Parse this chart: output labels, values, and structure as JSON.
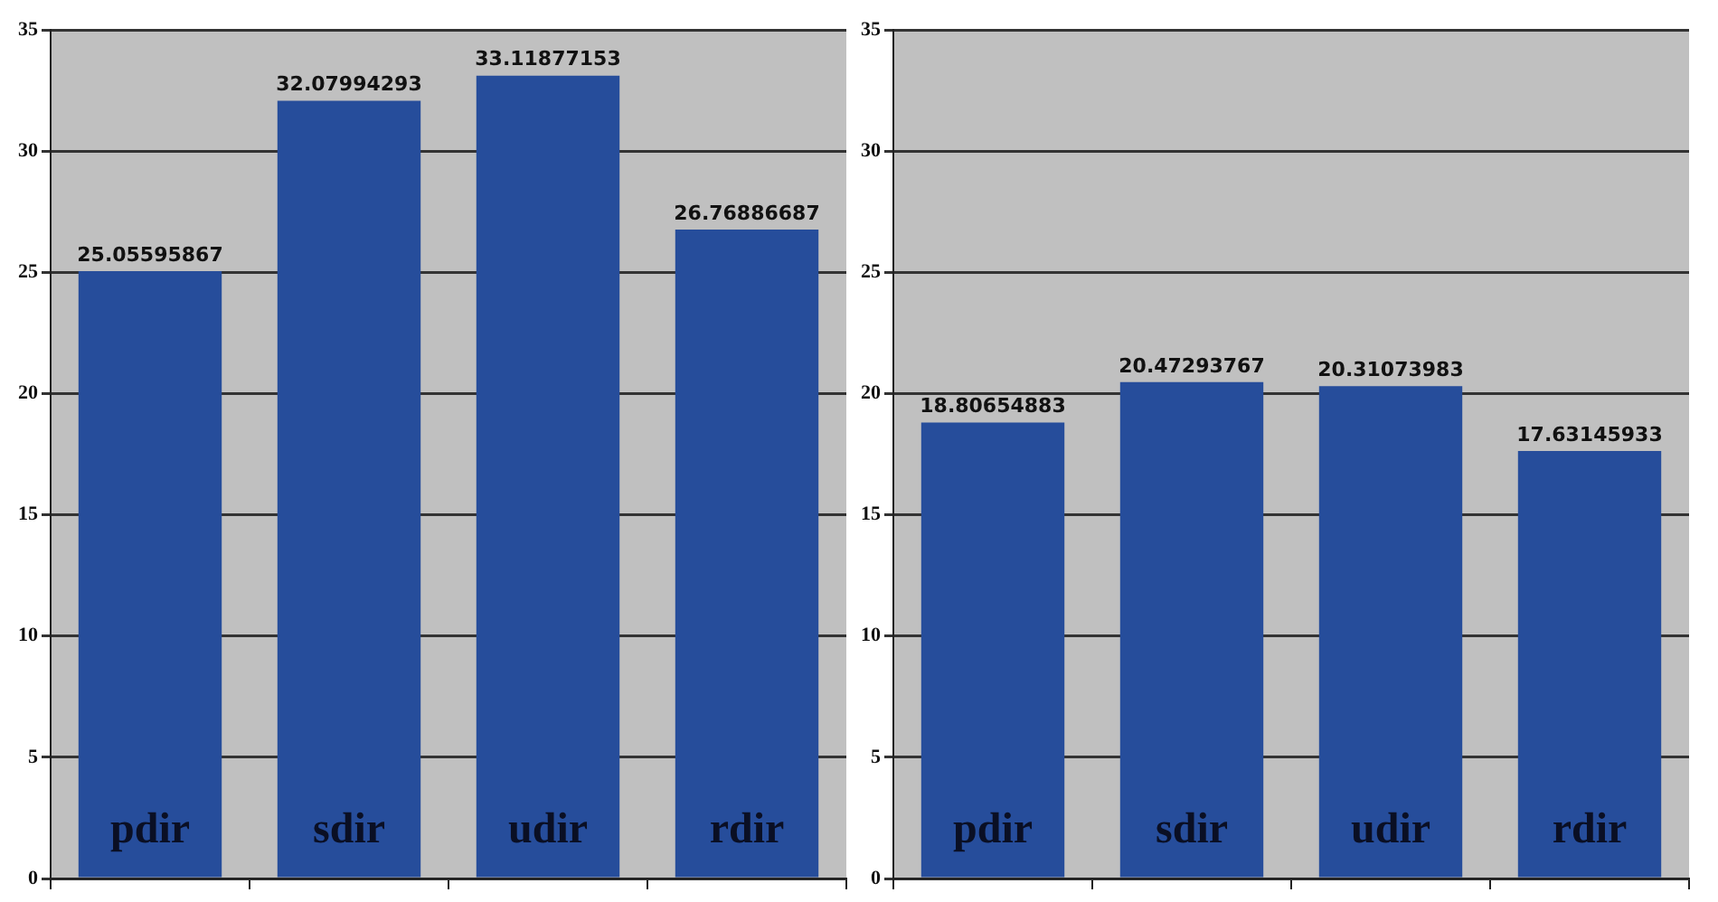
{
  "chart_data": [
    {
      "type": "bar",
      "categories": [
        "pdir",
        "sdir",
        "udir",
        "rdir"
      ],
      "values": [
        25.05595867,
        32.07994293,
        33.11877153,
        26.76886687
      ],
      "color": "#264d9b",
      "ylim": [
        0,
        35
      ],
      "yticks": [
        0,
        5,
        10,
        15,
        20,
        25,
        30,
        35
      ],
      "grid": "y",
      "data_labels": true
    },
    {
      "type": "bar",
      "categories": [
        "pdir",
        "sdir",
        "udir",
        "rdir"
      ],
      "values": [
        18.80654883,
        20.47293767,
        20.31073983,
        17.63145933
      ],
      "color": "#264d9b",
      "ylim": [
        0,
        35
      ],
      "yticks": [
        0,
        5,
        10,
        15,
        20,
        25,
        30,
        35
      ],
      "grid": "y",
      "data_labels": true
    }
  ]
}
